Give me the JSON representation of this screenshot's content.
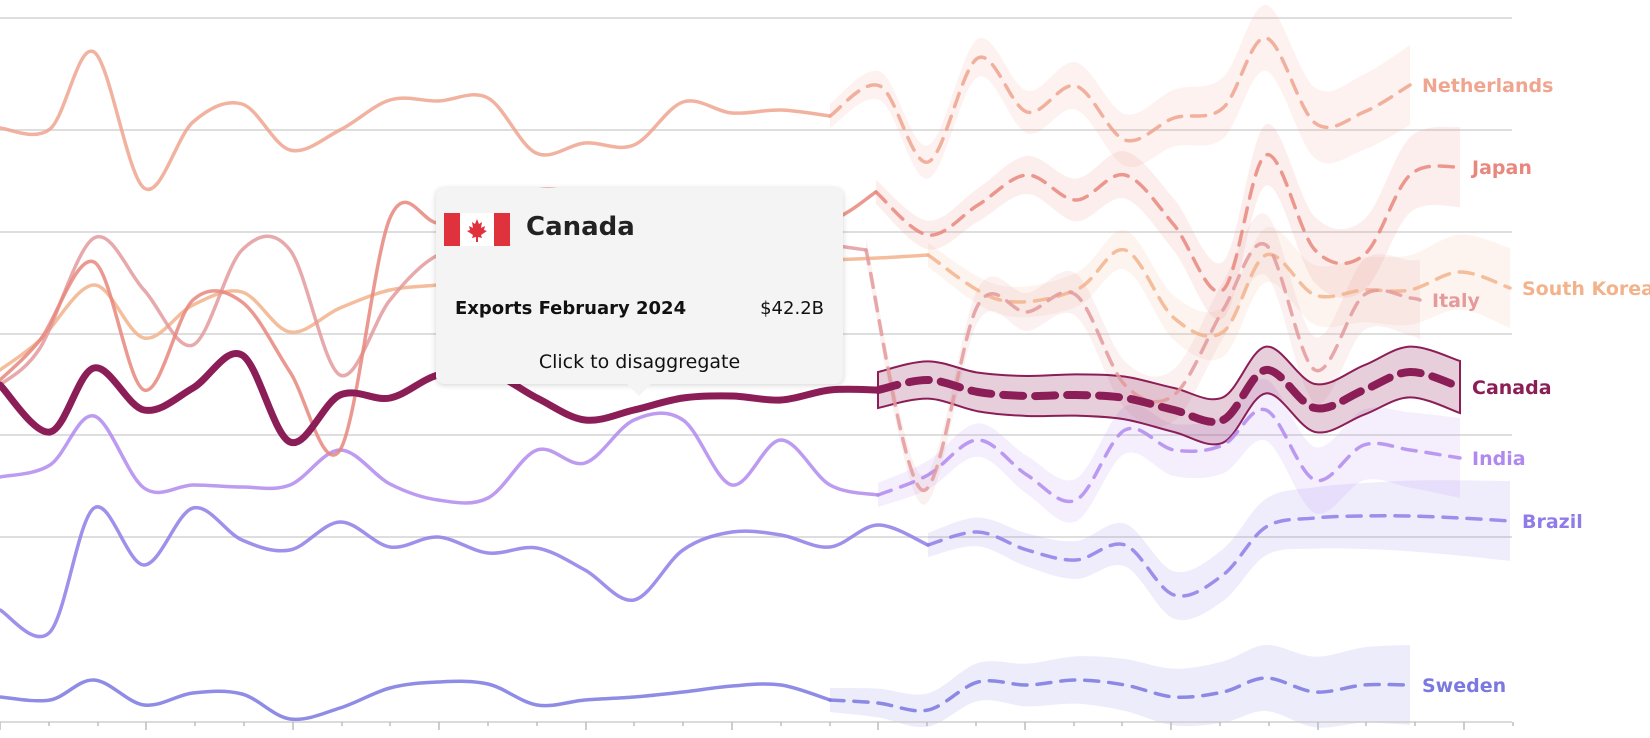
{
  "tooltip": {
    "country": "Canada",
    "metric_label": "Exports February 2024",
    "value_text": "$42.2B",
    "action_label": "Click to disaggregate",
    "flag_icon": "canada-flag-icon"
  },
  "chart_data": {
    "type": "line",
    "title": "",
    "xlabel": "",
    "ylabel": "",
    "grid": true,
    "highlighted_series": "Canada",
    "series": [
      {
        "name": "Netherlands",
        "color": "#efa58f",
        "actual": [
          [
            0,
            128
          ],
          [
            50,
            129
          ],
          [
            94,
            52
          ],
          [
            144,
            188
          ],
          [
            193,
            122
          ],
          [
            242,
            104
          ],
          [
            290,
            150
          ],
          [
            340,
            130
          ],
          [
            390,
            100
          ],
          [
            438,
            101
          ],
          [
            488,
            98
          ],
          [
            536,
            153
          ],
          [
            585,
            143
          ],
          [
            634,
            145
          ],
          [
            683,
            102
          ],
          [
            732,
            113
          ],
          [
            781,
            110
          ],
          [
            830,
            116
          ]
        ],
        "forecast": [
          [
            830,
            116
          ],
          [
            880,
            86
          ],
          [
            928,
            162
          ],
          [
            978,
            58
          ],
          [
            1027,
            112
          ],
          [
            1076,
            86
          ],
          [
            1125,
            140
          ],
          [
            1174,
            118
          ],
          [
            1223,
            108
          ],
          [
            1266,
            38
          ],
          [
            1315,
            123
          ],
          [
            1364,
            112
          ],
          [
            1410,
            85
          ]
        ]
      },
      {
        "name": "Japan",
        "color": "#e8877d",
        "actual": [
          [
            0,
            380
          ],
          [
            40,
            340
          ],
          [
            94,
            262
          ],
          [
            144,
            390
          ],
          [
            193,
            300
          ],
          [
            242,
            302
          ],
          [
            290,
            372
          ],
          [
            340,
            450
          ],
          [
            390,
            218
          ],
          [
            438,
            223
          ],
          [
            488,
            220
          ],
          [
            537,
            190
          ],
          [
            585,
            205
          ],
          [
            634,
            285
          ],
          [
            683,
            232
          ],
          [
            732,
            210
          ],
          [
            781,
            210
          ],
          [
            830,
            220
          ],
          [
            876,
            192
          ]
        ],
        "forecast": [
          [
            876,
            192
          ],
          [
            928,
            235
          ],
          [
            978,
            205
          ],
          [
            1027,
            175
          ],
          [
            1076,
            200
          ],
          [
            1125,
            175
          ],
          [
            1174,
            225
          ],
          [
            1223,
            290
          ],
          [
            1266,
            155
          ],
          [
            1315,
            250
          ],
          [
            1364,
            255
          ],
          [
            1410,
            175
          ],
          [
            1460,
            167
          ]
        ]
      },
      {
        "name": "Italy",
        "color": "#e39a9c",
        "actual": [
          [
            0,
            385
          ],
          [
            40,
            348
          ],
          [
            94,
            238
          ],
          [
            144,
            290
          ],
          [
            193,
            345
          ],
          [
            242,
            250
          ],
          [
            290,
            250
          ],
          [
            340,
            375
          ],
          [
            390,
            300
          ],
          [
            438,
            255
          ],
          [
            488,
            250
          ],
          [
            537,
            240
          ],
          [
            585,
            240
          ],
          [
            634,
            245
          ],
          [
            683,
            240
          ],
          [
            732,
            220
          ],
          [
            781,
            240
          ],
          [
            830,
            245
          ],
          [
            866,
            250
          ]
        ],
        "forecast": [
          [
            866,
            250
          ],
          [
            922,
            490
          ],
          [
            978,
            305
          ],
          [
            1027,
            312
          ],
          [
            1076,
            295
          ],
          [
            1125,
            385
          ],
          [
            1174,
            395
          ],
          [
            1223,
            310
          ],
          [
            1266,
            245
          ],
          [
            1315,
            370
          ],
          [
            1364,
            295
          ],
          [
            1410,
            298
          ],
          [
            1420,
            300
          ]
        ]
      },
      {
        "name": "South Korea",
        "color": "#f2b38c",
        "actual": [
          [
            0,
            370
          ],
          [
            40,
            340
          ],
          [
            94,
            285
          ],
          [
            144,
            338
          ],
          [
            193,
            305
          ],
          [
            242,
            292
          ],
          [
            290,
            332
          ],
          [
            340,
            308
          ],
          [
            390,
            290
          ],
          [
            438,
            285
          ],
          [
            488,
            280
          ],
          [
            537,
            276
          ],
          [
            585,
            270
          ],
          [
            634,
            268
          ],
          [
            683,
            268
          ],
          [
            732,
            265
          ],
          [
            781,
            262
          ],
          [
            830,
            260
          ],
          [
            878,
            258
          ],
          [
            928,
            255
          ]
        ],
        "forecast": [
          [
            928,
            255
          ],
          [
            1000,
            300
          ],
          [
            1076,
            290
          ],
          [
            1125,
            250
          ],
          [
            1174,
            318
          ],
          [
            1223,
            332
          ],
          [
            1266,
            255
          ],
          [
            1315,
            295
          ],
          [
            1364,
            290
          ],
          [
            1410,
            290
          ],
          [
            1460,
            272
          ],
          [
            1510,
            288
          ]
        ]
      },
      {
        "name": "India",
        "color": "#b089ee",
        "actual": [
          [
            0,
            477
          ],
          [
            50,
            465
          ],
          [
            94,
            416
          ],
          [
            144,
            488
          ],
          [
            193,
            485
          ],
          [
            242,
            487
          ],
          [
            290,
            485
          ],
          [
            340,
            450
          ],
          [
            390,
            484
          ],
          [
            438,
            500
          ],
          [
            488,
            498
          ],
          [
            537,
            450
          ],
          [
            585,
            463
          ],
          [
            634,
            420
          ],
          [
            683,
            420
          ],
          [
            732,
            485
          ],
          [
            781,
            440
          ],
          [
            830,
            485
          ],
          [
            878,
            495
          ]
        ],
        "forecast": [
          [
            878,
            495
          ],
          [
            928,
            475
          ],
          [
            978,
            440
          ],
          [
            1027,
            475
          ],
          [
            1076,
            500
          ],
          [
            1125,
            430
          ],
          [
            1174,
            450
          ],
          [
            1223,
            445
          ],
          [
            1266,
            410
          ],
          [
            1315,
            480
          ],
          [
            1364,
            445
          ],
          [
            1410,
            450
          ],
          [
            1460,
            458
          ]
        ]
      },
      {
        "name": "Brazil",
        "color": "#8f7ce8",
        "actual": [
          [
            0,
            610
          ],
          [
            50,
            632
          ],
          [
            94,
            508
          ],
          [
            144,
            565
          ],
          [
            193,
            508
          ],
          [
            242,
            540
          ],
          [
            290,
            550
          ],
          [
            340,
            522
          ],
          [
            390,
            547
          ],
          [
            438,
            537
          ],
          [
            488,
            553
          ],
          [
            537,
            548
          ],
          [
            585,
            570
          ],
          [
            634,
            600
          ],
          [
            683,
            550
          ],
          [
            732,
            532
          ],
          [
            781,
            535
          ],
          [
            830,
            547
          ],
          [
            878,
            525
          ],
          [
            928,
            545
          ]
        ],
        "forecast": [
          [
            928,
            545
          ],
          [
            978,
            532
          ],
          [
            1027,
            550
          ],
          [
            1076,
            560
          ],
          [
            1125,
            545
          ],
          [
            1174,
            595
          ],
          [
            1223,
            575
          ],
          [
            1266,
            527
          ],
          [
            1315,
            518
          ],
          [
            1364,
            516
          ],
          [
            1410,
            516
          ],
          [
            1460,
            518
          ],
          [
            1510,
            521
          ]
        ]
      },
      {
        "name": "Sweden",
        "color": "#7b78e0",
        "actual": [
          [
            0,
            697
          ],
          [
            50,
            700
          ],
          [
            94,
            680
          ],
          [
            144,
            705
          ],
          [
            193,
            693
          ],
          [
            242,
            694
          ],
          [
            290,
            719
          ],
          [
            340,
            708
          ],
          [
            390,
            688
          ],
          [
            438,
            682
          ],
          [
            488,
            684
          ],
          [
            537,
            705
          ],
          [
            585,
            700
          ],
          [
            634,
            697
          ],
          [
            683,
            692
          ],
          [
            732,
            686
          ],
          [
            781,
            685
          ],
          [
            830,
            700
          ]
        ],
        "forecast": [
          [
            830,
            700
          ],
          [
            878,
            703
          ],
          [
            928,
            710
          ],
          [
            978,
            682
          ],
          [
            1027,
            685
          ],
          [
            1076,
            680
          ],
          [
            1125,
            685
          ],
          [
            1174,
            697
          ],
          [
            1223,
            692
          ],
          [
            1266,
            678
          ],
          [
            1315,
            692
          ],
          [
            1364,
            685
          ],
          [
            1410,
            685
          ]
        ]
      },
      {
        "name": "Canada",
        "color": "#8c1e57",
        "actual": [
          [
            0,
            385
          ],
          [
            50,
            432
          ],
          [
            94,
            368
          ],
          [
            144,
            410
          ],
          [
            193,
            388
          ],
          [
            242,
            355
          ],
          [
            290,
            442
          ],
          [
            340,
            395
          ],
          [
            390,
            398
          ],
          [
            438,
            375
          ],
          [
            488,
            372
          ],
          [
            537,
            398
          ],
          [
            585,
            420
          ],
          [
            634,
            410
          ],
          [
            683,
            398
          ],
          [
            732,
            396
          ],
          [
            781,
            400
          ],
          [
            830,
            390
          ],
          [
            878,
            390
          ]
        ],
        "forecast": [
          [
            878,
            390
          ],
          [
            928,
            380
          ],
          [
            978,
            392
          ],
          [
            1027,
            396
          ],
          [
            1076,
            395
          ],
          [
            1125,
            398
          ],
          [
            1174,
            410
          ],
          [
            1223,
            420
          ],
          [
            1266,
            370
          ],
          [
            1315,
            408
          ],
          [
            1364,
            390
          ],
          [
            1410,
            372
          ],
          [
            1460,
            387
          ]
        ]
      }
    ]
  }
}
